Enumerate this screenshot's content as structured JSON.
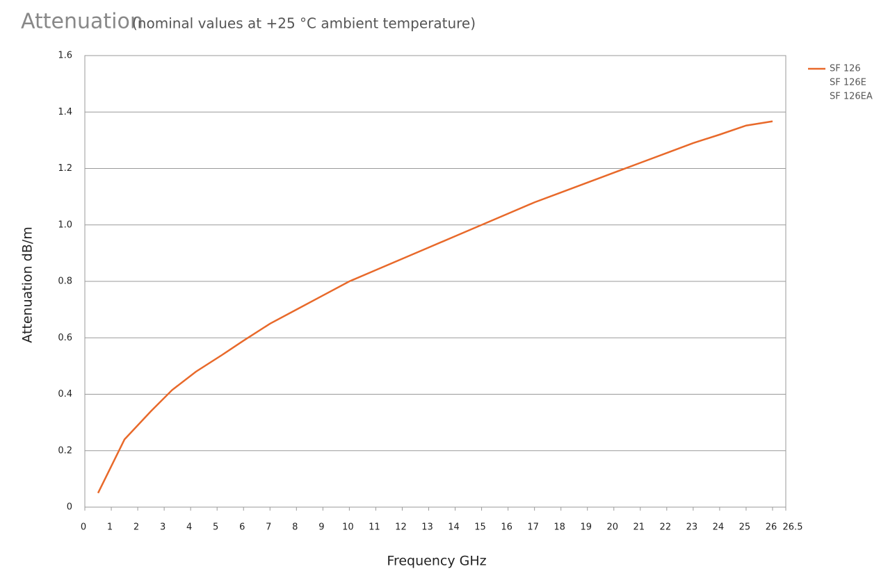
{
  "chart_data": {
    "type": "line",
    "title": "Attenuation",
    "subtitle": "(nominal values at +25 °C ambient temperature)",
    "x_label": "Frequency GHz",
    "y_label": "Attenuation dB/m",
    "x": [
      0.5,
      1.5,
      2.5,
      3.3,
      4.2,
      5.2,
      6,
      7,
      8,
      9,
      10,
      11,
      12,
      13,
      14,
      15,
      16,
      17,
      18,
      19,
      20,
      21,
      22,
      23,
      24,
      25,
      26
    ],
    "series": [
      {
        "name": "SF 126",
        "color": "#e8692a",
        "values": [
          0.05,
          0.24,
          0.34,
          0.415,
          0.48,
          0.54,
          0.59,
          0.65,
          0.7,
          0.75,
          0.8,
          0.84,
          0.88,
          0.92,
          0.96,
          1.0,
          1.04,
          1.08,
          1.115,
          1.15,
          1.185,
          1.22,
          1.255,
          1.29,
          1.32,
          1.352,
          1.367
        ]
      }
    ],
    "legend_lines": [
      "SF 126E",
      "SF 126EA"
    ],
    "xlim": [
      0,
      26.5
    ],
    "xticks": [
      0,
      1,
      2,
      3,
      4,
      5,
      6,
      7,
      8,
      9,
      10,
      11,
      12,
      13,
      14,
      15,
      16,
      17,
      18,
      19,
      20,
      21,
      22,
      23,
      24,
      25,
      26,
      26.5
    ],
    "ylim": [
      0,
      1.6
    ],
    "yticks": [
      0,
      0.2,
      0.4,
      0.6,
      0.8,
      {
        "value": 1,
        "label": "1.0"
      },
      1.2,
      1.4,
      1.6
    ],
    "grid": true
  }
}
